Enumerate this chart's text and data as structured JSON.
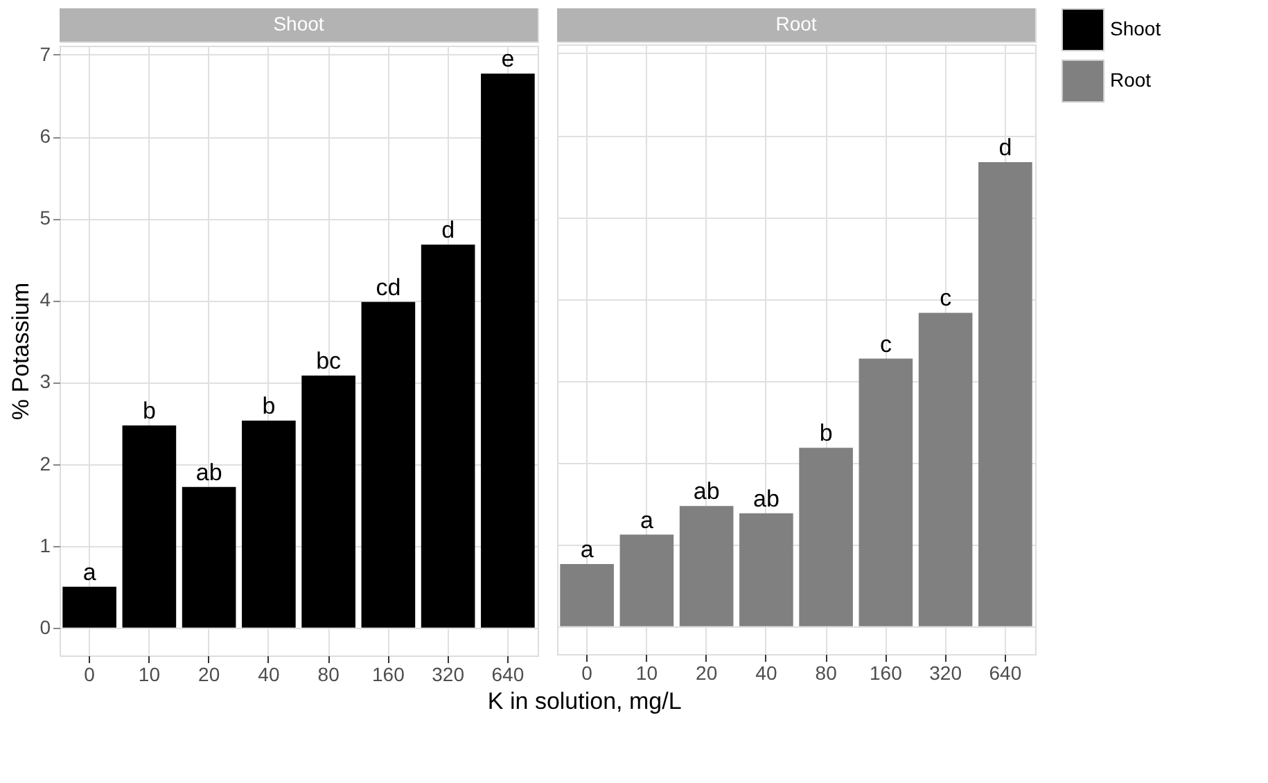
{
  "chart_data": [
    {
      "type": "bar",
      "title": "Shoot",
      "ylabel": "% Potassium",
      "xlabel": "K in solution, mg/L",
      "categories": [
        "0",
        "10",
        "20",
        "40",
        "80",
        "160",
        "320",
        "640"
      ],
      "series": [
        {
          "name": "Shoot",
          "color": "#000000",
          "values": [
            0.5,
            2.47,
            1.72,
            2.53,
            3.08,
            3.98,
            4.68,
            6.77
          ]
        }
      ],
      "ylim": [
        -0.34,
        7.11
      ],
      "yticks": [
        0,
        1,
        2,
        3,
        4,
        5,
        6,
        7
      ],
      "grid": true,
      "legend": "right",
      "annotations": [
        {
          "text": "a",
          "x": "0",
          "y": 0.5
        },
        {
          "text": "b",
          "x": "10",
          "y": 2.47
        },
        {
          "text": "ab",
          "x": "20",
          "y": 1.72
        },
        {
          "text": "b",
          "x": "40",
          "y": 2.53
        },
        {
          "text": "bc",
          "x": "80",
          "y": 3.08
        },
        {
          "text": "cd",
          "x": "160",
          "y": 3.98
        },
        {
          "text": "d",
          "x": "320",
          "y": 4.68
        },
        {
          "text": "e",
          "x": "640",
          "y": 6.77
        }
      ]
    },
    {
      "type": "bar",
      "title": "Root",
      "categories": [
        "0",
        "10",
        "20",
        "40",
        "80",
        "160",
        "320",
        "640"
      ],
      "series": [
        {
          "name": "Root",
          "color": "#808080",
          "values": [
            0.76,
            1.12,
            1.47,
            1.38,
            2.18,
            3.27,
            3.83,
            5.67
          ]
        }
      ],
      "ylim": [
        -0.34,
        7.11
      ],
      "yticks": [
        0,
        1,
        2,
        3,
        4,
        5,
        6,
        7
      ],
      "grid": true,
      "tick_labels": "x",
      "annotations": [
        {
          "text": "a",
          "x": "0",
          "y": 0.76
        },
        {
          "text": "a",
          "x": "10",
          "y": 1.12
        },
        {
          "text": "ab",
          "x": "20",
          "y": 1.47
        },
        {
          "text": "ab",
          "x": "40",
          "y": 1.38
        },
        {
          "text": "b",
          "x": "80",
          "y": 2.18
        },
        {
          "text": "c",
          "x": "160",
          "y": 3.27
        },
        {
          "text": "c",
          "x": "320",
          "y": 3.83
        },
        {
          "text": "d",
          "x": "640",
          "y": 5.67
        }
      ]
    }
  ]
}
